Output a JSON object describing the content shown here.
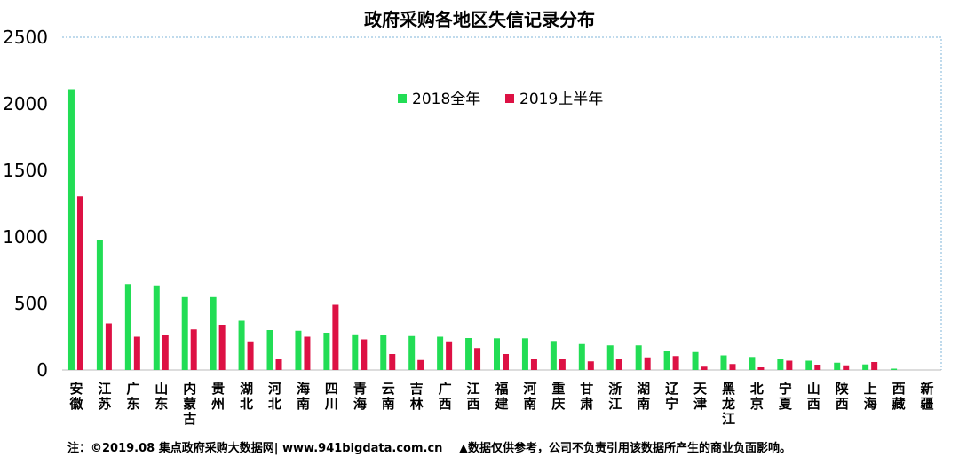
{
  "chart_data": {
    "type": "bar",
    "title": "政府采购各地区失信记录分布",
    "ylim": [
      0,
      2500
    ],
    "yticks": [
      0,
      500,
      1000,
      1500,
      2000,
      2500
    ],
    "legend_position": "top-center",
    "categories": [
      "安徽",
      "江苏",
      "广东",
      "山东",
      "内蒙古",
      "贵州",
      "湖北",
      "河北",
      "海南",
      "四川",
      "青海",
      "云南",
      "吉林",
      "广西",
      "江西",
      "福建",
      "河南",
      "重庆",
      "甘肃",
      "浙江",
      "湖南",
      "辽宁",
      "天津",
      "黑龙江",
      "北京",
      "宁夏",
      "山西",
      "陕西",
      "上海",
      "西藏",
      "新疆"
    ],
    "series": [
      {
        "name": "2018全年",
        "color": "#22dd55",
        "values": [
          2110,
          980,
          645,
          635,
          548,
          548,
          370,
          300,
          295,
          280,
          268,
          265,
          255,
          250,
          240,
          238,
          238,
          218,
          195,
          185,
          185,
          145,
          135,
          110,
          98,
          80,
          70,
          55,
          42,
          10,
          0
        ]
      },
      {
        "name": "2019上半年",
        "color": "#dd1144",
        "values": [
          1305,
          350,
          250,
          265,
          305,
          340,
          215,
          80,
          250,
          490,
          230,
          120,
          75,
          215,
          165,
          120,
          80,
          80,
          65,
          80,
          95,
          105,
          25,
          45,
          20,
          70,
          40,
          35,
          60,
          0,
          0
        ]
      }
    ]
  },
  "footnote": {
    "source": "注：©2019.08 集点政府采购大数据网| www.941bigdata.com.cn",
    "disclaimer": "▲数据仅供参考，公司不负责引用该数据所产生的商业负面影响。"
  }
}
